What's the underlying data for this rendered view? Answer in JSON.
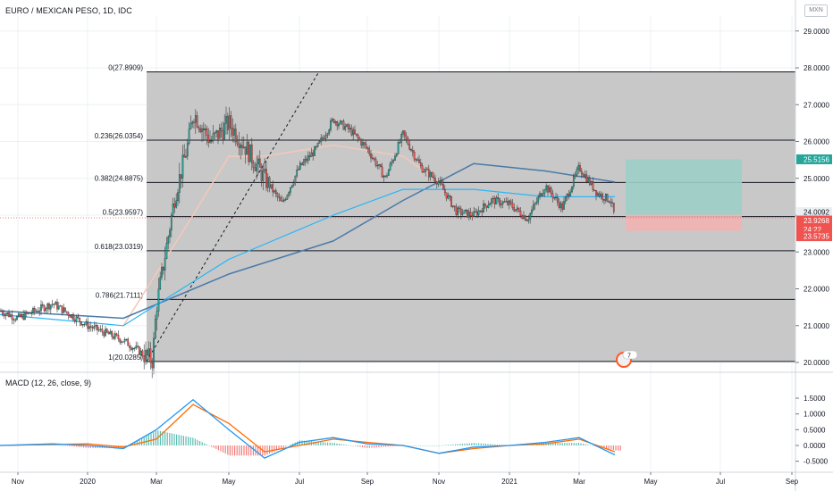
{
  "header": {
    "symbol_title": "EURO / MEXICAN PESO, 1D, IDC",
    "currency": "MXN",
    "macd_label": "MACD (12, 26, close, 9)"
  },
  "colors": {
    "fib_fill": "#c8c8c8",
    "fib_line": "#131722",
    "up_candle": "#26a69a",
    "down_candle": "#ef5350",
    "ma_fast": "#f5c8b8",
    "ma_mid": "#29b6f6",
    "ma_slow": "#4a7aa8",
    "profit_zone": "#9ccfc6",
    "loss_zone": "#f2b3b3",
    "macd_line": "#2196f3",
    "signal_line": "#ff6d00",
    "hist_pos": "#26a69a",
    "hist_neg": "#ef5350"
  },
  "chart_data": [
    {
      "type": "candlestick",
      "title": "EURO / MEXICAN PESO, 1D, IDC",
      "ylim": [
        19.6,
        29.3
      ],
      "y_ticks": [
        "29.0000",
        "28.0000",
        "27.0000",
        "26.0000",
        "25.0000",
        "24.0000",
        "23.0000",
        "22.0000",
        "21.0000",
        "20.0000"
      ],
      "x_ticks": [
        "Nov",
        "2020",
        "Mar",
        "May",
        "Jul",
        "Sep",
        "Nov",
        "2021",
        "Mar",
        "May",
        "Jul",
        "Sep"
      ],
      "fib_levels": [
        {
          "label": "0(27.8909)",
          "value": 27.8909
        },
        {
          "label": "0.236(26.0354)",
          "value": 26.0354
        },
        {
          "label": "0.382(24.8875)",
          "value": 24.8875
        },
        {
          "label": "0.5(23.9597)",
          "value": 23.9597
        },
        {
          "label": "0.618(23.0319)",
          "value": 23.0319
        },
        {
          "label": "0.786(21.7111)",
          "value": 21.7111
        },
        {
          "label": "1(20.0285)",
          "value": 20.0285
        }
      ],
      "price_path": [
        {
          "x": "Oct 2019",
          "y": 21.4
        },
        {
          "x": "Nov 2019",
          "y": 21.2
        },
        {
          "x": "Dec 2019",
          "y": 21.6
        },
        {
          "x": "Jan 2020",
          "y": 21.0
        },
        {
          "x": "Feb 2020",
          "y": 20.6
        },
        {
          "x": "Feb 2020 end",
          "y": 20.05
        },
        {
          "x": "Mar 2020",
          "y": 21.5
        },
        {
          "x": "Mar 2020 mid",
          "y": 24.5
        },
        {
          "x": "Mar 2020 end",
          "y": 26.0
        },
        {
          "x": "Apr 2020",
          "y": 26.8
        },
        {
          "x": "Apr 2020 mid",
          "y": 26.0
        },
        {
          "x": "May 2020",
          "y": 26.5
        },
        {
          "x": "May 2020 mid",
          "y": 25.8
        },
        {
          "x": "Jun 2020",
          "y": 25.0
        },
        {
          "x": "Jun 2020 mid",
          "y": 24.3
        },
        {
          "x": "Jul 2020",
          "y": 25.3
        },
        {
          "x": "Jul 2020 mid",
          "y": 25.8
        },
        {
          "x": "Aug 2020",
          "y": 26.6
        },
        {
          "x": "Aug 2020 mid",
          "y": 26.3
        },
        {
          "x": "Sep 2020",
          "y": 25.8
        },
        {
          "x": "Sep 2020 mid",
          "y": 25.0
        },
        {
          "x": "Oct 2020",
          "y": 26.2
        },
        {
          "x": "Oct 2020 mid",
          "y": 25.3
        },
        {
          "x": "Nov 2020",
          "y": 24.9
        },
        {
          "x": "Nov 2020 mid",
          "y": 24.1
        },
        {
          "x": "Dec 2020",
          "y": 24.0
        },
        {
          "x": "Dec 2020 mid",
          "y": 24.4
        },
        {
          "x": "Jan 2021",
          "y": 24.3
        },
        {
          "x": "Jan 2021 mid",
          "y": 23.9
        },
        {
          "x": "Feb 2021",
          "y": 24.8
        },
        {
          "x": "Feb 2021 mid",
          "y": 24.2
        },
        {
          "x": "Mar 2021",
          "y": 25.3
        },
        {
          "x": "Mar 2021 mid",
          "y": 24.6
        },
        {
          "x": "Mar 2021 end",
          "y": 24.4
        },
        {
          "x": "Apr 2021",
          "y": 23.93
        }
      ],
      "moving_average_slow": [
        {
          "x": "Oct 2019",
          "y": 21.4
        },
        {
          "x": "Feb 2020",
          "y": 21.2
        },
        {
          "x": "May 2020",
          "y": 22.4
        },
        {
          "x": "Aug 2020",
          "y": 23.3
        },
        {
          "x": "Oct 2020",
          "y": 24.4
        },
        {
          "x": "Dec 2020",
          "y": 25.4
        },
        {
          "x": "Feb 2021",
          "y": 25.2
        },
        {
          "x": "Apr 2021",
          "y": 24.9
        }
      ],
      "moving_average_mid": [
        {
          "x": "Oct 2019",
          "y": 21.3
        },
        {
          "x": "Feb 2020",
          "y": 21.0
        },
        {
          "x": "May 2020",
          "y": 22.8
        },
        {
          "x": "Aug 2020",
          "y": 24.0
        },
        {
          "x": "Oct 2020",
          "y": 24.7
        },
        {
          "x": "Dec 2020",
          "y": 24.7
        },
        {
          "x": "Feb 2021",
          "y": 24.5
        },
        {
          "x": "Apr 2021",
          "y": 24.5
        }
      ],
      "moving_average_fast": [
        {
          "x": "Feb 2020",
          "y": 21.0
        },
        {
          "x": "Apr 2020",
          "y": 24.0
        },
        {
          "x": "May 2020",
          "y": 25.6
        },
        {
          "x": "Jun 2020",
          "y": 25.6
        },
        {
          "x": "Aug 2020",
          "y": 25.9
        },
        {
          "x": "Oct 2020",
          "y": 25.6
        },
        {
          "x": "Nov 2020",
          "y": 24.9
        }
      ],
      "position": {
        "entry": 24.0092,
        "target": 25.5156,
        "stop": 23.5735
      },
      "price_labels": [
        "25.5156",
        "24.0092",
        "23.9268",
        "24:22",
        "23.5735"
      ],
      "badge_value": "7"
    },
    {
      "type": "macd",
      "title": "MACD (12, 26, close, 9)",
      "ylim": [
        -0.5,
        1.55
      ],
      "y_ticks": [
        "1.5000",
        "1.0000",
        "0.5000",
        "0.0000",
        "-0.5000"
      ],
      "macd": [
        {
          "x": "Oct 2019",
          "y": 0.0
        },
        {
          "x": "Dec 2019",
          "y": 0.05
        },
        {
          "x": "Jan 2020",
          "y": 0.0
        },
        {
          "x": "Feb 2020",
          "y": -0.1
        },
        {
          "x": "Mar 2020",
          "y": 0.5
        },
        {
          "x": "Apr 2020",
          "y": 1.45
        },
        {
          "x": "May 2020",
          "y": 0.5
        },
        {
          "x": "Jun 2020",
          "y": -0.4
        },
        {
          "x": "Jul 2020",
          "y": 0.1
        },
        {
          "x": "Aug 2020",
          "y": 0.25
        },
        {
          "x": "Sep 2020",
          "y": 0.05
        },
        {
          "x": "Oct 2020",
          "y": 0.0
        },
        {
          "x": "Nov 2020",
          "y": -0.25
        },
        {
          "x": "Dec 2020",
          "y": -0.05
        },
        {
          "x": "Jan 2021",
          "y": 0.0
        },
        {
          "x": "Feb 2021",
          "y": 0.1
        },
        {
          "x": "Mar 2021",
          "y": 0.25
        },
        {
          "x": "Apr 2021",
          "y": -0.3
        }
      ],
      "signal": [
        {
          "x": "Oct 2019",
          "y": 0.0
        },
        {
          "x": "Jan 2020",
          "y": 0.05
        },
        {
          "x": "Feb 2020",
          "y": -0.05
        },
        {
          "x": "Mar 2020",
          "y": 0.2
        },
        {
          "x": "Apr 2020",
          "y": 1.3
        },
        {
          "x": "May 2020",
          "y": 0.7
        },
        {
          "x": "Jun 2020",
          "y": -0.2
        },
        {
          "x": "Jul 2020",
          "y": 0.0
        },
        {
          "x": "Aug 2020",
          "y": 0.2
        },
        {
          "x": "Sep 2020",
          "y": 0.1
        },
        {
          "x": "Oct 2020",
          "y": 0.0
        },
        {
          "x": "Nov 2020",
          "y": -0.25
        },
        {
          "x": "Dec 2020",
          "y": -0.1
        },
        {
          "x": "Jan 2021",
          "y": 0.0
        },
        {
          "x": "Feb 2021",
          "y": 0.05
        },
        {
          "x": "Mar 2021",
          "y": 0.2
        },
        {
          "x": "Apr 2021",
          "y": -0.2
        }
      ]
    }
  ]
}
